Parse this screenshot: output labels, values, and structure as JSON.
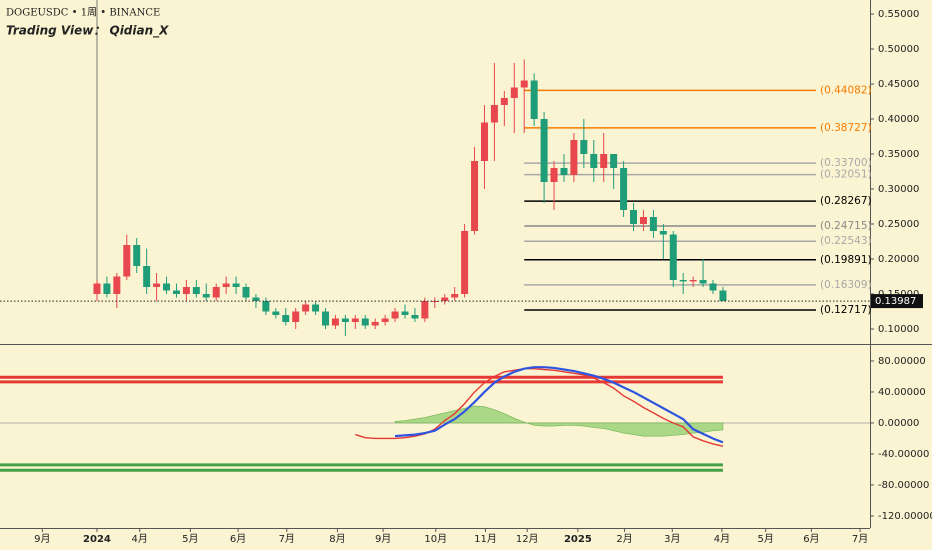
{
  "header": {
    "symbol": "DOGEUSDC • 1周 • BINANCE",
    "author": "Trading View： Qidian_X"
  },
  "chart_data": [
    {
      "type": "candlestick",
      "open": [
        0.15,
        0.165,
        0.15,
        0.175,
        0.22,
        0.19,
        0.16,
        0.165,
        0.155,
        0.15,
        0.16,
        0.15,
        0.145,
        0.16,
        0.165,
        0.16,
        0.145,
        0.14,
        0.125,
        0.12,
        0.11,
        0.125,
        0.135,
        0.125,
        0.105,
        0.115,
        0.11,
        0.115,
        0.105,
        0.11,
        0.115,
        0.125,
        0.12,
        0.115,
        0.14,
        0.14,
        0.145,
        0.15,
        0.24,
        0.34,
        0.395,
        0.42,
        0.43,
        0.445,
        0.455,
        0.4,
        0.31,
        0.33,
        0.32,
        0.37,
        0.35,
        0.33,
        0.35,
        0.33,
        0.27,
        0.25,
        0.26,
        0.24,
        0.235,
        0.17,
        0.168,
        0.17,
        0.165,
        0.155
      ],
      "high": [
        0.17,
        0.175,
        0.18,
        0.235,
        0.23,
        0.215,
        0.18,
        0.175,
        0.165,
        0.17,
        0.17,
        0.165,
        0.165,
        0.175,
        0.175,
        0.165,
        0.15,
        0.145,
        0.13,
        0.13,
        0.13,
        0.14,
        0.14,
        0.13,
        0.12,
        0.12,
        0.12,
        0.12,
        0.115,
        0.12,
        0.13,
        0.135,
        0.13,
        0.145,
        0.145,
        0.15,
        0.16,
        0.25,
        0.36,
        0.42,
        0.48,
        0.44,
        0.48,
        0.485,
        0.465,
        0.41,
        0.34,
        0.35,
        0.38,
        0.4,
        0.37,
        0.38,
        0.35,
        0.34,
        0.28,
        0.27,
        0.27,
        0.25,
        0.24,
        0.18,
        0.175,
        0.2,
        0.17,
        0.16
      ],
      "low": [
        0.14,
        0.145,
        0.13,
        0.17,
        0.18,
        0.15,
        0.14,
        0.15,
        0.145,
        0.14,
        0.145,
        0.14,
        0.14,
        0.15,
        0.15,
        0.14,
        0.13,
        0.12,
        0.115,
        0.105,
        0.1,
        0.12,
        0.12,
        0.1,
        0.1,
        0.09,
        0.1,
        0.1,
        0.1,
        0.105,
        0.11,
        0.115,
        0.11,
        0.11,
        0.13,
        0.135,
        0.14,
        0.145,
        0.235,
        0.3,
        0.34,
        0.39,
        0.38,
        0.38,
        0.39,
        0.28,
        0.27,
        0.31,
        0.31,
        0.33,
        0.31,
        0.31,
        0.3,
        0.26,
        0.24,
        0.24,
        0.23,
        0.2,
        0.16,
        0.15,
        0.16,
        0.16,
        0.15,
        0.14
      ],
      "close": [
        0.165,
        0.15,
        0.175,
        0.22,
        0.19,
        0.16,
        0.165,
        0.155,
        0.15,
        0.16,
        0.15,
        0.145,
        0.16,
        0.165,
        0.16,
        0.145,
        0.14,
        0.125,
        0.12,
        0.11,
        0.125,
        0.135,
        0.125,
        0.105,
        0.115,
        0.11,
        0.115,
        0.105,
        0.11,
        0.115,
        0.125,
        0.12,
        0.115,
        0.14,
        0.14,
        0.145,
        0.15,
        0.24,
        0.34,
        0.395,
        0.42,
        0.43,
        0.445,
        0.455,
        0.4,
        0.31,
        0.33,
        0.32,
        0.37,
        0.35,
        0.33,
        0.35,
        0.33,
        0.27,
        0.25,
        0.26,
        0.24,
        0.235,
        0.17,
        0.168,
        0.17,
        0.165,
        0.155,
        0.14
      ],
      "up_color": "#e8474d",
      "down_color": "#1f9d79",
      "ylim": [
        0.08,
        0.57
      ],
      "yticks": [
        {
          "value": 0.55,
          "label": "0.55000"
        },
        {
          "value": 0.5,
          "label": "0.50000"
        },
        {
          "value": 0.45,
          "label": "0.45000"
        },
        {
          "value": 0.4,
          "label": "0.40000"
        },
        {
          "value": 0.35,
          "label": "0.35000"
        },
        {
          "value": 0.3,
          "label": "0.30000"
        },
        {
          "value": 0.25,
          "label": "0.25000"
        },
        {
          "value": 0.2,
          "label": "0.20000"
        },
        {
          "value": 0.15,
          "label": "0.15000"
        },
        {
          "value": 0.1,
          "label": "0.10000"
        }
      ],
      "xlim": [
        -9.76,
        77.8
      ],
      "xticks": [
        {
          "value": -5.5,
          "label": "9月"
        },
        {
          "value": 0,
          "label": "2024"
        },
        {
          "value": 4.3,
          "label": "4月"
        },
        {
          "value": 9.4,
          "label": "5月"
        },
        {
          "value": 14.2,
          "label": "6月"
        },
        {
          "value": 19.1,
          "label": "7月"
        },
        {
          "value": 24.2,
          "label": "8月"
        },
        {
          "value": 28.8,
          "label": "9月"
        },
        {
          "value": 34.1,
          "label": "10月"
        },
        {
          "value": 39.1,
          "label": "11月"
        },
        {
          "value": 43.3,
          "label": "12月"
        },
        {
          "value": 48.4,
          "label": "2025"
        },
        {
          "value": 53.1,
          "label": "2月"
        },
        {
          "value": 57.9,
          "label": "3月"
        },
        {
          "value": 62.9,
          "label": "4月"
        },
        {
          "value": 67.3,
          "label": "5月"
        },
        {
          "value": 71.9,
          "label": "6月"
        },
        {
          "value": 76.8,
          "label": "7月"
        }
      ],
      "levels": [
        {
          "value": 0.44082,
          "label": "(0.44082)",
          "color": "#f57c00"
        },
        {
          "value": 0.38727,
          "label": "(0.38727)",
          "color": "#f57c00"
        },
        {
          "value": 0.337,
          "label": "(0.33700)",
          "color": "#a8a8a8"
        },
        {
          "value": 0.32051,
          "label": "(0.32051)",
          "color": "#a8a8a8"
        },
        {
          "value": 0.28267,
          "label": "(0.28267)",
          "color": "#000000"
        },
        {
          "value": 0.24715,
          "label": "(0.24715)",
          "color": "#888888"
        },
        {
          "value": 0.22543,
          "label": "(0.22543)",
          "color": "#a8a8a8"
        },
        {
          "value": 0.19891,
          "label": "(0.19891)",
          "color": "#000000"
        },
        {
          "value": 0.16309,
          "label": "(0.16309)",
          "color": "#a8a8a8"
        },
        {
          "value": 0.12717,
          "label": "(0.12717)",
          "color": "#000000"
        }
      ],
      "last": {
        "value": 0.13987,
        "label": "0.13987"
      }
    },
    {
      "type": "oscillator",
      "series": [
        {
          "color": "#e53935",
          "values": [
            null,
            null,
            null,
            null,
            null,
            null,
            null,
            null,
            null,
            null,
            null,
            null,
            null,
            null,
            null,
            null,
            null,
            null,
            null,
            null,
            null,
            null,
            null,
            null,
            null,
            null,
            -15,
            -19,
            -20,
            -20,
            -20,
            -19,
            -17,
            -14,
            -8,
            3,
            12,
            25,
            40,
            52,
            60,
            66,
            68,
            70,
            70,
            69,
            68,
            66,
            64,
            62,
            58,
            52,
            45,
            35,
            28,
            20,
            13,
            6,
            0,
            -5,
            -18,
            -23,
            -27,
            -30
          ]
        },
        {
          "color": "#2f55e0",
          "values": [
            null,
            null,
            null,
            null,
            null,
            null,
            null,
            null,
            null,
            null,
            null,
            null,
            null,
            null,
            null,
            null,
            null,
            null,
            null,
            null,
            null,
            null,
            null,
            null,
            null,
            null,
            null,
            null,
            null,
            null,
            -17,
            -16,
            -15,
            -13,
            -10,
            -2,
            5,
            15,
            27,
            40,
            52,
            60,
            66,
            70,
            72,
            72,
            71,
            69,
            67,
            64,
            61,
            57,
            52,
            46,
            40,
            33,
            26,
            19,
            12,
            5,
            -8,
            -14,
            -20,
            -25
          ]
        }
      ],
      "histogram": {
        "color": "#8fcf6e",
        "values": [
          null,
          null,
          null,
          null,
          null,
          null,
          null,
          null,
          null,
          null,
          null,
          null,
          null,
          null,
          null,
          null,
          null,
          null,
          null,
          null,
          null,
          null,
          null,
          null,
          null,
          null,
          null,
          null,
          null,
          null,
          2,
          3,
          5,
          7,
          10,
          13,
          16,
          19,
          22,
          21,
          17,
          12,
          6,
          1,
          -3,
          -4,
          -4,
          -3,
          -3,
          -4,
          -6,
          -7,
          -10,
          -13,
          -15,
          -17,
          -17,
          -17,
          -16,
          -15,
          -13,
          -12,
          -10,
          -9
        ]
      },
      "hlines": [
        {
          "value": 59,
          "color": "#e53935"
        },
        {
          "value": 53,
          "color": "#e53935"
        },
        {
          "value": -54,
          "color": "#43a047"
        },
        {
          "value": -61,
          "color": "#43a047"
        }
      ],
      "ylim": [
        -135.5,
        100.6
      ],
      "yticks": [
        {
          "value": 80,
          "label": "80.00000"
        },
        {
          "value": 40,
          "label": "40.00000"
        },
        {
          "value": 0,
          "label": "0.00000"
        },
        {
          "value": -40,
          "label": "-40.00000"
        },
        {
          "value": -80,
          "label": "-80.00000"
        },
        {
          "value": -120,
          "label": "-120.00000"
        }
      ]
    }
  ]
}
